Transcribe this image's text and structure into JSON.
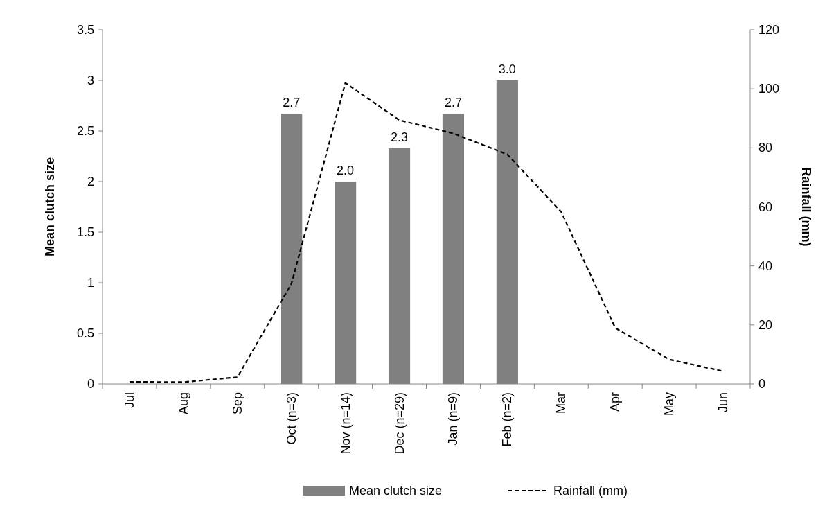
{
  "chart_data": {
    "type": "bar",
    "categories": [
      "Jul",
      "Aug",
      "Sep",
      "Oct (n=3)",
      "Nov (n=14)",
      "Dec (n=29)",
      "Jan (n=9)",
      "Feb (n=2)",
      "Mar",
      "Apr",
      "May",
      "Jun"
    ],
    "series": [
      {
        "name": "Mean clutch size",
        "color": "#808080",
        "values": [
          null,
          null,
          null,
          2.67,
          2.0,
          2.33,
          2.67,
          3.0,
          null,
          null,
          null,
          null
        ],
        "value_labels": [
          null,
          null,
          null,
          "2.7",
          "2.0",
          "2.3",
          "2.7",
          "3.0",
          null,
          null,
          null,
          null
        ]
      },
      {
        "name": "Rainfall (mm)",
        "type": "line",
        "axis": "y2",
        "color": "#000000",
        "line_style": "dashed",
        "values": [
          0.7,
          0.6,
          2.3,
          33.9,
          102,
          89.4,
          84.9,
          77.8,
          58.3,
          19.0,
          8.3,
          4.3
        ]
      }
    ],
    "ylabel": "Mean clutch size",
    "y2label": "Rainfall (mm)",
    "ylim": [
      0,
      3.5
    ],
    "yticks": [
      0,
      0.5,
      1,
      1.5,
      2,
      2.5,
      3,
      3.5
    ],
    "y2lim": [
      0,
      120
    ],
    "y2ticks": [
      0,
      20,
      40,
      60,
      80,
      100,
      120
    ],
    "legend": "bottom",
    "grid": false
  }
}
